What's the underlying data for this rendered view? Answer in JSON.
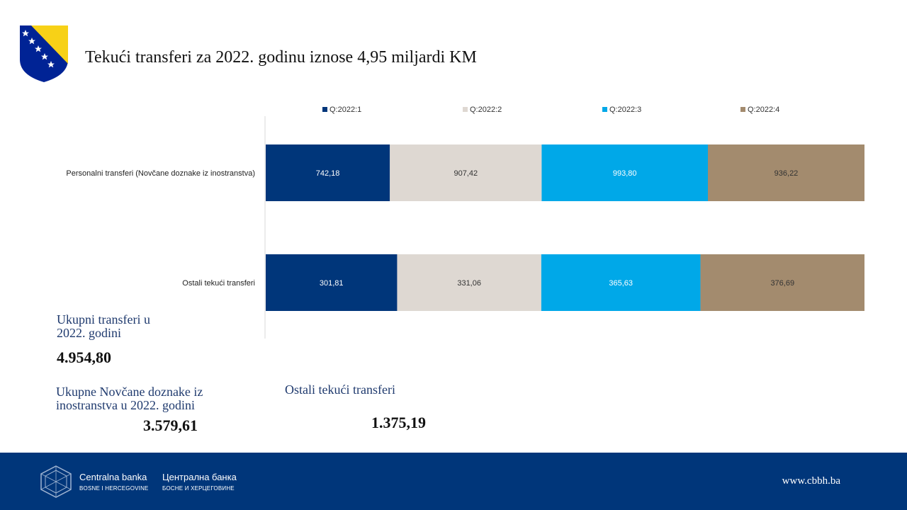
{
  "title": "Tekući transferi za 2022. godinu iznose 4,95 miljardi KM",
  "colors": {
    "q1": "#00367a",
    "q2": "#ded8d2",
    "q3": "#00a8e8",
    "q4": "#a38b6e",
    "label_dark": "#ffffff",
    "label_light": "#333333",
    "footer": "#00367a",
    "flag_yellow": "#f7d117",
    "flag_blue": "#002395"
  },
  "chart_data": {
    "type": "bar",
    "orientation": "horizontal",
    "stacking": "normalized-100%",
    "categories": [
      "Personalni transferi (Novčane doznake iz inostranstva)",
      "Ostali tekući transferi"
    ],
    "series": [
      {
        "name": "Q:2022:1",
        "values": [
          742.18,
          301.81
        ],
        "labels": [
          "742,18",
          "301,81"
        ]
      },
      {
        "name": "Q:2022:2",
        "values": [
          907.42,
          331.06
        ],
        "labels": [
          "907,42",
          "331,06"
        ]
      },
      {
        "name": "Q:2022:3",
        "values": [
          993.8,
          365.63
        ],
        "labels": [
          "993,80",
          "365,63"
        ]
      },
      {
        "name": "Q:2022:4",
        "values": [
          936.22,
          376.69
        ],
        "labels": [
          "936,22",
          "376,69"
        ]
      }
    ],
    "legend_position": "top",
    "grid": false
  },
  "stats": {
    "total_label": "Ukupni transferi u 2022. godini",
    "total_value": "4.954,80",
    "remit_label": "Ukupne Novčane doznake iz inostranstva u 2022. godini",
    "remit_value": "3.579,61",
    "other_label": "Ostali tekući transferi",
    "other_value": "1.375,19"
  },
  "footer": {
    "bank_latin": "Centralna banka",
    "bank_latin_sub": "BOSNE I HERCEGOVINE",
    "bank_cyrillic": "Централна банка",
    "bank_cyrillic_sub": "БОСНЕ И ХЕРЦЕГОВИНЕ",
    "website": "www.cbbh.ba"
  },
  "icons": {
    "coat_of_arms": "bih-coat-of-arms-icon",
    "bank_logo": "cbbh-logo-icon"
  }
}
